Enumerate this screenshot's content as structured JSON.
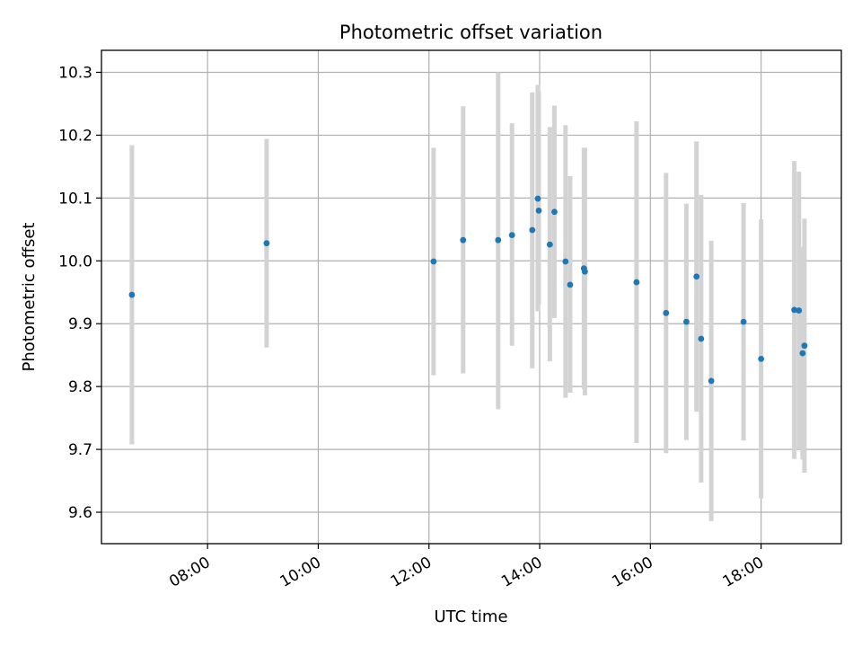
{
  "chart_data": {
    "type": "scatter",
    "title": "Photometric offset variation",
    "xlabel": "UTC time",
    "ylabel": "Photometric offset",
    "x_axis": "time",
    "xlim": [
      "06:05",
      "19:27"
    ],
    "ylim": [
      9.55,
      10.335
    ],
    "xticks": [
      "08:00",
      "10:00",
      "12:00",
      "14:00",
      "16:00",
      "18:00"
    ],
    "yticks": [
      9.6,
      9.7,
      9.8,
      9.9,
      10.0,
      10.1,
      10.2,
      10.3
    ],
    "grid": true,
    "colors": {
      "points": "#1f77b4",
      "errorbars": "#d3d3d3",
      "grid": "#b0b0b0"
    },
    "series": [
      {
        "points": [
          {
            "x": "06:38",
            "y": 9.946,
            "low": 9.708,
            "high": 10.184
          },
          {
            "x": "09:04",
            "y": 10.028,
            "low": 9.862,
            "high": 10.194
          },
          {
            "x": "12:05",
            "y": 9.999,
            "low": 9.818,
            "high": 10.18
          },
          {
            "x": "12:37",
            "y": 10.033,
            "low": 9.821,
            "high": 10.246
          },
          {
            "x": "13:15",
            "y": 10.033,
            "low": 9.764,
            "high": 10.3
          },
          {
            "x": "13:30",
            "y": 10.041,
            "low": 9.865,
            "high": 10.219
          },
          {
            "x": "13:52",
            "y": 10.049,
            "low": 9.829,
            "high": 10.268
          },
          {
            "x": "13:58",
            "y": 10.099,
            "low": 9.92,
            "high": 10.28
          },
          {
            "x": "13:59",
            "y": 10.08,
            "low": 9.93,
            "high": 10.27
          },
          {
            "x": "14:11",
            "y": 10.026,
            "low": 9.84,
            "high": 10.213
          },
          {
            "x": "14:16",
            "y": 10.078,
            "low": 9.909,
            "high": 10.247
          },
          {
            "x": "14:28",
            "y": 9.999,
            "low": 9.782,
            "high": 10.216
          },
          {
            "x": "14:33",
            "y": 9.962,
            "low": 9.79,
            "high": 10.135
          },
          {
            "x": "14:48",
            "y": 9.988,
            "low": 9.796,
            "high": 10.18
          },
          {
            "x": "14:49",
            "y": 9.983,
            "low": 9.786,
            "high": 10.18
          },
          {
            "x": "15:45",
            "y": 9.966,
            "low": 9.71,
            "high": 10.222
          },
          {
            "x": "16:17",
            "y": 9.917,
            "low": 9.694,
            "high": 10.14
          },
          {
            "x": "16:39",
            "y": 9.903,
            "low": 9.715,
            "high": 10.091
          },
          {
            "x": "16:50",
            "y": 9.975,
            "low": 9.76,
            "high": 10.19
          },
          {
            "x": "16:55",
            "y": 9.876,
            "low": 9.647,
            "high": 10.105
          },
          {
            "x": "17:06",
            "y": 9.809,
            "low": 9.586,
            "high": 10.032
          },
          {
            "x": "17:41",
            "y": 9.903,
            "low": 9.714,
            "high": 10.092
          },
          {
            "x": "18:00",
            "y": 9.844,
            "low": 9.622,
            "high": 10.066
          },
          {
            "x": "18:36",
            "y": 9.922,
            "low": 9.685,
            "high": 10.159
          },
          {
            "x": "18:41",
            "y": 9.921,
            "low": 9.7,
            "high": 10.142
          },
          {
            "x": "18:45",
            "y": 9.853,
            "low": 9.684,
            "high": 10.022
          },
          {
            "x": "18:47",
            "y": 9.865,
            "low": 9.663,
            "high": 10.067
          }
        ]
      }
    ]
  }
}
